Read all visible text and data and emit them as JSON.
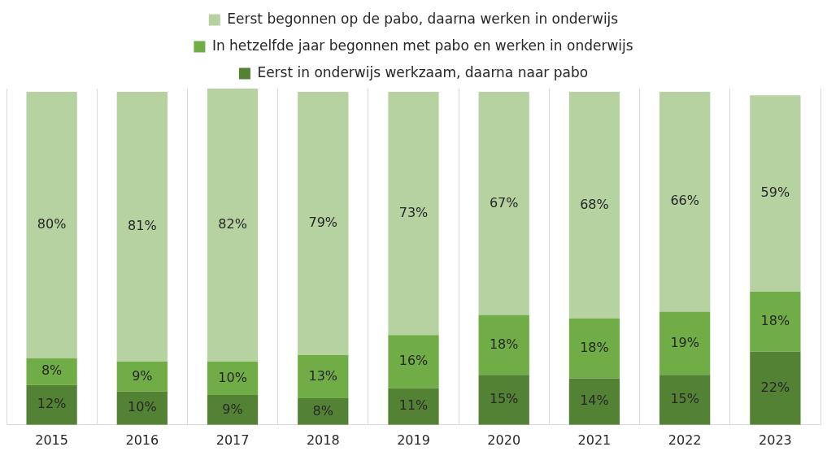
{
  "chart_data": {
    "type": "bar",
    "stacked": true,
    "categories": [
      "2015",
      "2016",
      "2017",
      "2018",
      "2019",
      "2020",
      "2021",
      "2022",
      "2023"
    ],
    "series": [
      {
        "name": "Eerst in onderwijs werkzaam, daarna naar pabo",
        "color": "#548235",
        "values": [
          12,
          10,
          9,
          8,
          11,
          15,
          14,
          15,
          22
        ],
        "value_labels": [
          "12%",
          "10%",
          "9%",
          "8%",
          "11%",
          "15%",
          "14%",
          "15%",
          "22%"
        ]
      },
      {
        "name": "In hetzelfde jaar begonnen met pabo en werken in onderwijs",
        "color": "#70ad47",
        "values": [
          8,
          9,
          10,
          13,
          16,
          18,
          18,
          19,
          18
        ],
        "value_labels": [
          "8%",
          "9%",
          "10%",
          "13%",
          "16%",
          "18%",
          "18%",
          "19%",
          "18%"
        ]
      },
      {
        "name": "Eerst begonnen op de pabo, daarna werken in onderwijs",
        "color": "#b5d2a0",
        "values": [
          80,
          81,
          82,
          79,
          73,
          67,
          68,
          66,
          59
        ],
        "value_labels": [
          "80%",
          "81%",
          "82%",
          "79%",
          "73%",
          "67%",
          "68%",
          "66%",
          "59%"
        ]
      }
    ],
    "legend": "top",
    "grid": "x",
    "tick_labels": "x"
  }
}
